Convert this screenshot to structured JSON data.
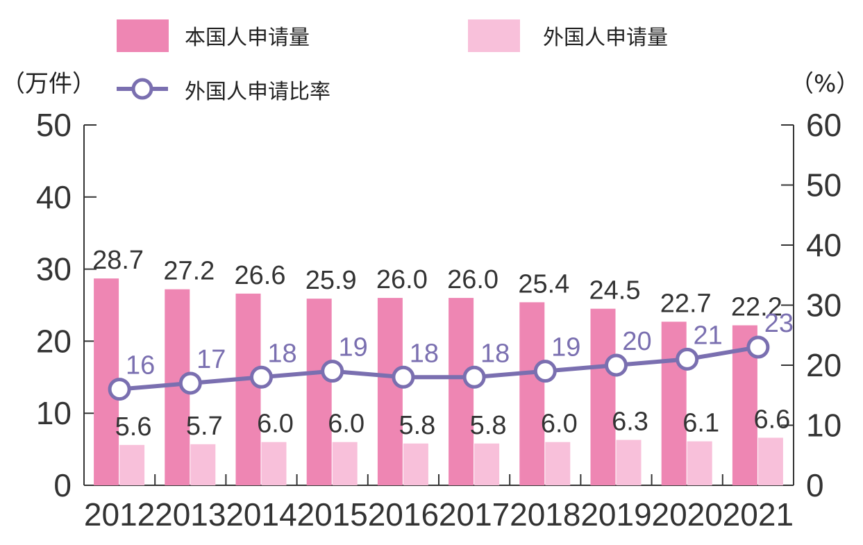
{
  "chart_data": {
    "type": "bar",
    "categories": [
      "2012",
      "2013",
      "2014",
      "2015",
      "2016",
      "2017",
      "2018",
      "2019",
      "2020",
      "2021"
    ],
    "series": [
      {
        "name": "本国人申请量",
        "axis": "left",
        "values": [
          28.7,
          27.2,
          26.6,
          25.9,
          26.0,
          26.0,
          25.4,
          24.5,
          22.7,
          22.2
        ],
        "labels": [
          "28.7",
          "27.2",
          "26.6",
          "25.9",
          "26.0",
          "26.0",
          "25.4",
          "24.5",
          "22.7",
          "22.2"
        ]
      },
      {
        "name": "外国人申请量",
        "axis": "left",
        "values": [
          5.6,
          5.7,
          6.0,
          6.0,
          5.8,
          5.8,
          6.0,
          6.3,
          6.1,
          6.6
        ],
        "labels": [
          "5.6",
          "5.7",
          "6.0",
          "6.0",
          "5.8",
          "5.8",
          "6.0",
          "6.3",
          "6.1",
          "6.6"
        ]
      },
      {
        "name": "外国人申请比率",
        "axis": "right",
        "type": "line",
        "values": [
          16,
          17,
          18,
          19,
          18,
          18,
          19,
          20,
          21,
          23
        ],
        "labels": [
          "16",
          "17",
          "18",
          "19",
          "18",
          "18",
          "19",
          "20",
          "21",
          "23"
        ]
      }
    ],
    "left_axis": {
      "label": "（万件）",
      "ylim": [
        0,
        50
      ],
      "ticks": [
        "0",
        "10",
        "20",
        "30",
        "40",
        "50"
      ]
    },
    "right_axis": {
      "label": "（%）",
      "ylim": [
        0,
        60
      ],
      "ticks": [
        "0",
        "10",
        "20",
        "30",
        "40",
        "50",
        "60"
      ]
    },
    "colors": {
      "domestic": "#ee86b3",
      "foreign": "#f8c0da",
      "line": "#7a6fb0",
      "axis": "#333333"
    },
    "legend": "top",
    "grid": false
  }
}
